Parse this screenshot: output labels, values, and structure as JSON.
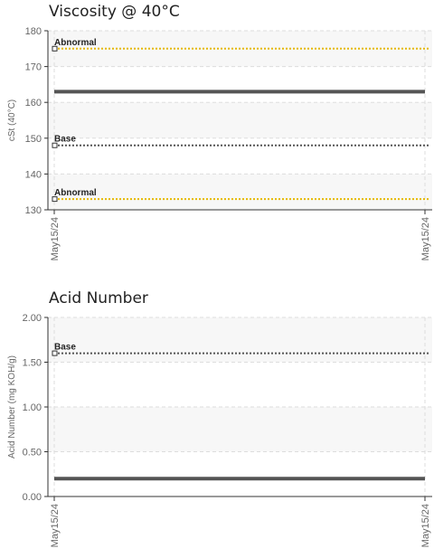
{
  "chart_data": [
    {
      "type": "line",
      "title": "Viscosity @ 40°C",
      "ylabel": "cSt (40°C)",
      "xlabel": "",
      "ylim": [
        130,
        180
      ],
      "yticks": [
        130,
        140,
        150,
        160,
        170,
        180
      ],
      "ytick_labels": [
        "130",
        "140",
        "150",
        "160",
        "170",
        "180"
      ],
      "bands": [
        [
          130,
          140
        ],
        [
          150,
          160
        ],
        [
          170,
          180
        ]
      ],
      "band_color": "#f7f7f7",
      "x_tick_labels": [
        "May15/24",
        "May15/24"
      ],
      "grid": true,
      "series": [
        {
          "values": [
            163,
            163
          ],
          "color": "#555555",
          "style": "solid"
        }
      ],
      "reference_lines": [
        {
          "label": "Abnormal",
          "value": 175,
          "color": "#e6b800",
          "style": "dotted"
        },
        {
          "label": "Base",
          "value": 148,
          "color": "#555555",
          "style": "dotted"
        },
        {
          "label": "Abnormal",
          "value": 133,
          "color": "#e6b800",
          "style": "dotted"
        }
      ]
    },
    {
      "type": "line",
      "title": "Acid Number",
      "ylabel": "Acid Number (mg KOH/g)",
      "xlabel": "",
      "ylim": [
        0,
        2
      ],
      "yticks": [
        0,
        0.5,
        1,
        1.5,
        2
      ],
      "ytick_labels": [
        "0.00",
        "0.50",
        "1.00",
        "1.50",
        "2.00"
      ],
      "bands": [
        [
          0.5,
          1
        ],
        [
          1.5,
          2
        ]
      ],
      "band_color": "#f7f7f7",
      "x_tick_labels": [
        "May15/24",
        "May15/24"
      ],
      "grid": true,
      "series": [
        {
          "values": [
            0.2,
            0.2
          ],
          "color": "#555555",
          "style": "solid"
        }
      ],
      "reference_lines": [
        {
          "label": "Base",
          "value": 1.6,
          "color": "#555555",
          "style": "dotted"
        }
      ]
    }
  ]
}
